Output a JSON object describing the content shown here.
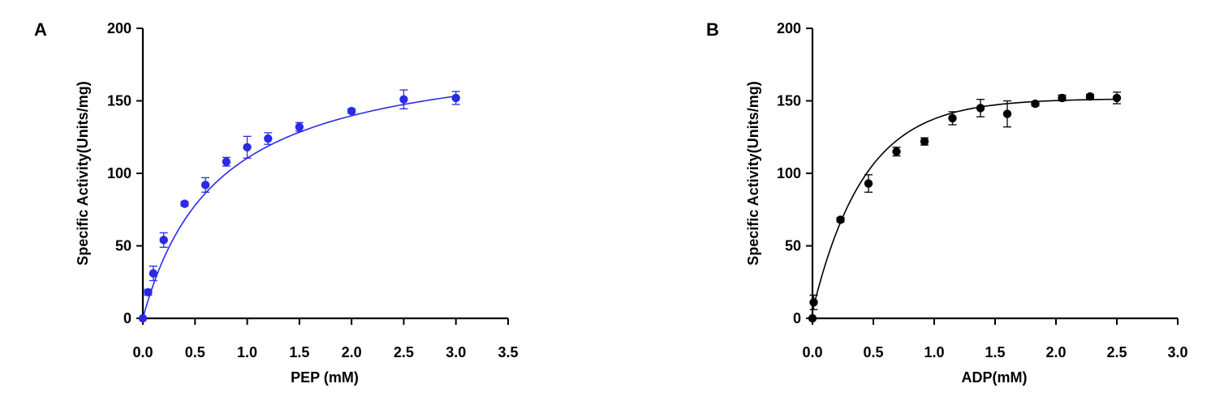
{
  "chart_data": [
    {
      "type": "scatter",
      "panel_label": "A",
      "xlabel": "PEP (mM)",
      "ylabel": "Specific Activity(Units/mg)",
      "xlim": [
        0,
        3.5
      ],
      "ylim": [
        0,
        200
      ],
      "xticks": [
        "0.0",
        "0.5",
        "1.0",
        "1.5",
        "2.0",
        "2.5",
        "3.0",
        "3.5"
      ],
      "yticks": [
        "0",
        "50",
        "100",
        "150",
        "200"
      ],
      "color": "#2a2ae6",
      "fit": "michaelis-menten",
      "fit_params": {
        "vmax": 190,
        "km": 0.72
      },
      "series": [
        {
          "x": [
            0,
            0.05,
            0.1,
            0.2,
            0.4,
            0.6,
            0.8,
            1.0,
            1.2,
            1.5,
            2.0,
            2.5,
            3.0
          ],
          "y": [
            0,
            18,
            31,
            54,
            79,
            92,
            108,
            118,
            124,
            132,
            143,
            151,
            152
          ],
          "err": [
            0,
            2,
            5,
            5,
            1.5,
            5,
            3,
            7.5,
            4,
            3,
            1.5,
            6.5,
            4.5
          ]
        }
      ]
    },
    {
      "type": "scatter",
      "panel_label": "B",
      "xlabel": "ADP(mM)",
      "ylabel": "Specific Activity(Units/mg)",
      "xlim": [
        0,
        3.0
      ],
      "ylim": [
        0,
        200
      ],
      "xticks": [
        "0.0",
        "0.5",
        "1.0",
        "1.5",
        "2.0",
        "2.5",
        "3.0"
      ],
      "yticks": [
        "0",
        "50",
        "100",
        "150",
        "200"
      ],
      "color": "#000000",
      "fit": "exponential-rise",
      "fit_params": {
        "y0": 5,
        "plateau": 151.5,
        "k": 2.35
      },
      "series": [
        {
          "x": [
            0,
            0.01,
            0.23,
            0.46,
            0.69,
            0.92,
            1.15,
            1.38,
            1.6,
            1.83,
            2.05,
            2.28,
            2.5
          ],
          "y": [
            0,
            11,
            68,
            93,
            115,
            122,
            138,
            145,
            141,
            148,
            152,
            153,
            152
          ],
          "err": [
            0,
            5,
            1.5,
            6,
            3,
            2.5,
            4.5,
            6,
            9,
            1.5,
            2,
            1.5,
            4
          ]
        }
      ]
    }
  ]
}
